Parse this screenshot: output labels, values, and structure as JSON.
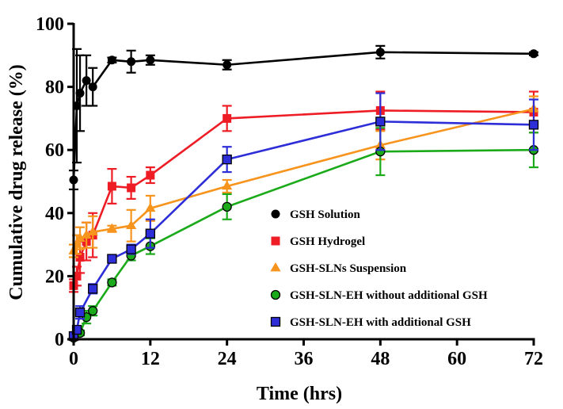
{
  "chart_data": {
    "type": "line",
    "xlabel": "Time (hrs)",
    "ylabel": "Cumulative drug release (%)",
    "xlim": [
      0,
      72
    ],
    "ylim": [
      0,
      100
    ],
    "xticks": [
      0,
      12,
      24,
      36,
      48,
      60,
      72
    ],
    "yticks": [
      0,
      20,
      40,
      60,
      80,
      100
    ],
    "legend_position": "bottom-right",
    "series": [
      {
        "name": "GSH Solution",
        "color": "#000000",
        "marker": "circle",
        "x": [
          0,
          0.5,
          1,
          2,
          3,
          6,
          9,
          12,
          24,
          48,
          72
        ],
        "y": [
          50.5,
          74,
          78,
          82,
          80,
          88.5,
          88,
          88.5,
          87,
          91,
          90.5
        ],
        "err": [
          3,
          18,
          12,
          8,
          6,
          0.8,
          3.5,
          1.5,
          1.5,
          2,
          0.5
        ]
      },
      {
        "name": "GSH Hydrogel",
        "color": "#ee1c24",
        "marker": "square",
        "x": [
          0,
          0.5,
          1,
          2,
          3,
          6,
          9,
          12,
          24,
          48,
          72
        ],
        "y": [
          17,
          20,
          26,
          31,
          33,
          48.5,
          48,
          52,
          70,
          72.5,
          72
        ],
        "err": [
          2,
          3,
          5,
          6,
          7,
          5.5,
          3.5,
          2.5,
          4,
          6,
          6.5
        ]
      },
      {
        "name": "GSH-SLNs Suspension",
        "color": "#f7941d",
        "marker": "triangle",
        "x": [
          0,
          0.5,
          1,
          2,
          3,
          6,
          9,
          12,
          24,
          48,
          72
        ],
        "y": [
          28,
          30,
          32,
          33,
          34,
          35,
          36,
          41.5,
          48.5,
          61.5,
          73
        ],
        "err": [
          2,
          3,
          3.5,
          4,
          5,
          1,
          5,
          4,
          2,
          4.5,
          4
        ]
      },
      {
        "name": "GSH-SLN-EH without additional GSH",
        "color": "#1aaa1a",
        "marker": "circle",
        "x": [
          0,
          1,
          2,
          3,
          6,
          9,
          12,
          24,
          48,
          72
        ],
        "y": [
          0.5,
          2,
          7,
          9,
          18,
          26.5,
          29.5,
          42,
          59.5,
          60
        ],
        "err": [
          0.5,
          0.8,
          2,
          1.5,
          1,
          1.5,
          2.5,
          4,
          7.5,
          5.5
        ]
      },
      {
        "name": "GSH-SLN-EH with additional GSH",
        "color": "#2e2ed8",
        "marker": "square",
        "x": [
          0,
          0.5,
          1,
          3,
          6,
          9,
          12,
          24,
          48,
          72
        ],
        "y": [
          1,
          3,
          8.5,
          16,
          25.5,
          28.5,
          33.5,
          57,
          69,
          68
        ],
        "err": [
          0.5,
          1,
          2,
          1.5,
          1,
          1.5,
          4.5,
          4,
          9,
          8
        ]
      }
    ]
  }
}
